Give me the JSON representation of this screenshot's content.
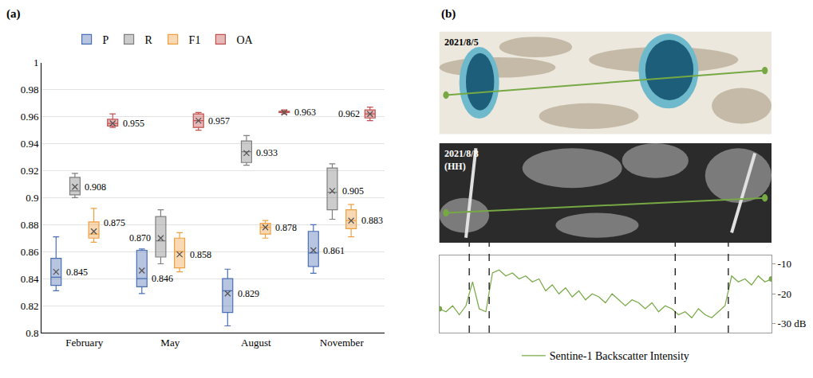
{
  "chart_data": [
    {
      "type": "box",
      "panel": "(a)",
      "categories": [
        "February",
        "May",
        "August",
        "November"
      ],
      "series": [
        {
          "name": "P",
          "color": "#4a6fb5",
          "lower": [
            0.831,
            0.829,
            0.805,
            0.844
          ],
          "q1": [
            0.835,
            0.834,
            0.815,
            0.849
          ],
          "median": [
            0.841,
            0.84,
            0.831,
            0.859
          ],
          "q3": [
            0.855,
            0.861,
            0.84,
            0.875
          ],
          "upper": [
            0.871,
            0.862,
            0.847,
            0.88
          ],
          "values": [
            0.845,
            0.846,
            0.829,
            0.861
          ],
          "value_labels": [
            "0.845",
            "0.846",
            "0.829",
            "0.861"
          ]
        },
        {
          "name": "R",
          "color": "#7f7f7f",
          "lower": [
            0.9,
            0.851,
            0.924,
            0.884
          ],
          "q1": [
            0.902,
            0.856,
            0.926,
            0.891
          ],
          "median": [
            0.905,
            0.868,
            0.934,
            0.904
          ],
          "q3": [
            0.915,
            0.886,
            0.942,
            0.922
          ],
          "upper": [
            0.918,
            0.891,
            0.946,
            0.925
          ],
          "values": [
            0.908,
            0.87,
            0.933,
            0.905
          ],
          "value_labels": [
            "0.908",
            "0.870",
            "0.933",
            "0.905"
          ]
        },
        {
          "name": "F1",
          "color": "#f0a040",
          "lower": [
            0.867,
            0.845,
            0.87,
            0.871
          ],
          "q1": [
            0.87,
            0.848,
            0.873,
            0.877
          ],
          "median": [
            0.873,
            0.86,
            0.878,
            0.883
          ],
          "q3": [
            0.882,
            0.87,
            0.881,
            0.891
          ],
          "upper": [
            0.892,
            0.874,
            0.883,
            0.895
          ],
          "values": [
            0.875,
            0.858,
            0.878,
            0.883
          ],
          "value_labels": [
            "0.875",
            "0.858",
            "0.878",
            "0.883"
          ]
        },
        {
          "name": "OA",
          "color": "#c0504d",
          "lower": [
            0.952,
            0.95,
            0.962,
            0.957
          ],
          "q1": [
            0.953,
            0.952,
            0.963,
            0.959
          ],
          "median": [
            0.955,
            0.957,
            0.963,
            0.962
          ],
          "q3": [
            0.958,
            0.962,
            0.964,
            0.965
          ],
          "upper": [
            0.962,
            0.963,
            0.965,
            0.967
          ],
          "values": [
            0.955,
            0.957,
            0.963,
            0.962
          ],
          "value_labels": [
            "0.955",
            "0.957",
            "0.963",
            "0.962"
          ]
        }
      ],
      "ylim": [
        0.8,
        1
      ],
      "yticks": [
        0.8,
        0.82,
        0.84,
        0.86,
        0.88,
        0.9,
        0.92,
        0.94,
        0.96,
        0.98,
        1
      ],
      "grid": true,
      "legend": "top",
      "marker": "x",
      "data_labels": true
    },
    {
      "type": "line",
      "panel": "(b)",
      "images": [
        "2021/8/5",
        "2021/8/8 (HH)"
      ],
      "x": [
        0,
        2,
        4,
        6,
        8,
        10,
        12,
        14,
        16,
        18,
        20,
        22,
        24,
        26,
        28,
        30,
        32,
        34,
        36,
        38,
        40,
        42,
        44,
        46,
        48,
        50,
        52,
        54,
        56,
        58,
        60,
        62,
        64,
        66,
        68,
        70,
        72,
        74,
        76,
        78,
        80,
        82,
        84,
        86,
        88,
        90,
        92,
        94,
        96,
        98,
        100
      ],
      "series": [
        {
          "name": "Sentine-1 Backscatter Intensity",
          "color": "#76a844",
          "values": [
            -25,
            -26,
            -24,
            -27,
            -24,
            -16,
            -25,
            -26,
            -13,
            -12,
            -14,
            -13,
            -15,
            -14,
            -16,
            -15,
            -19,
            -17,
            -20,
            -18,
            -21,
            -19,
            -22,
            -20,
            -21,
            -23,
            -20,
            -22,
            -24,
            -22,
            -23,
            -25,
            -23,
            -26,
            -24,
            -25,
            -27,
            -26,
            -28,
            -25,
            -27,
            -28,
            -26,
            -24,
            -14,
            -16,
            -15,
            -17,
            -14,
            -16,
            -15
          ]
        }
      ],
      "boundaries": [
        9,
        15,
        71,
        87
      ],
      "xlim": [
        0,
        100
      ],
      "ylim": [
        -33,
        -7
      ],
      "yticks": [
        {
          "value": -30,
          "label": "-30 dB"
        },
        -20,
        -10
      ],
      "tick_labels": "y",
      "grid": false,
      "legend": "bottom",
      "marker": "circle"
    }
  ]
}
